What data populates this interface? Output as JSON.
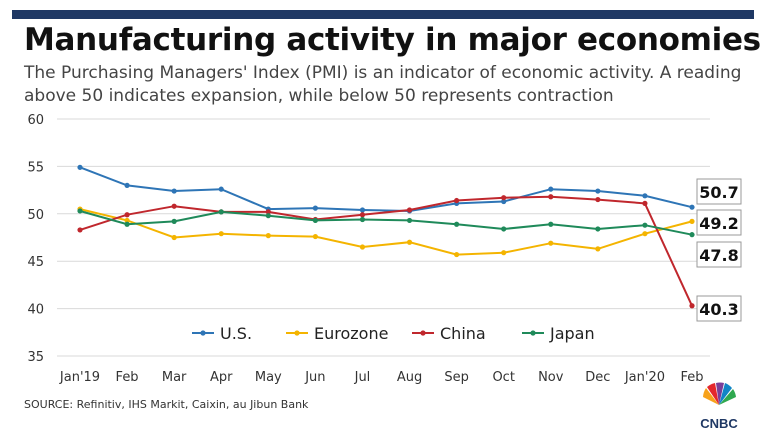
{
  "header": {
    "title": "Manufacturing activity in major economies",
    "subtitle": "The Purchasing Managers' Index (PMI) is an indicator of economic activity. A reading above 50 indicates expansion, while below 50 represents contraction"
  },
  "footer": {
    "source": "SOURCE: Refinitiv, IHS Markit, Caixin, au Jibun Bank",
    "logo_text": "CNBC"
  },
  "colors": {
    "bar": "#1f3864",
    "grid": "#d9d9d9"
  },
  "chart_data": {
    "type": "line",
    "categories": [
      "Jan'19",
      "Feb",
      "Mar",
      "Apr",
      "May",
      "Jun",
      "Jul",
      "Aug",
      "Sep",
      "Oct",
      "Nov",
      "Dec",
      "Jan'20",
      "Feb"
    ],
    "ylim": [
      35,
      60
    ],
    "yticks": [
      35,
      40,
      45,
      50,
      55,
      60
    ],
    "grid": true,
    "legend_position": "bottom-inside",
    "series": [
      {
        "name": "U.S.",
        "color": "#2e75b6",
        "values": [
          54.9,
          53.0,
          52.4,
          52.6,
          50.5,
          50.6,
          50.4,
          50.3,
          51.1,
          51.3,
          52.6,
          52.4,
          51.9,
          50.7
        ],
        "end_label": "50.7"
      },
      {
        "name": "Eurozone",
        "color": "#f4b400",
        "values": [
          50.5,
          49.3,
          47.5,
          47.9,
          47.7,
          47.6,
          46.5,
          47.0,
          45.7,
          45.9,
          46.9,
          46.3,
          47.9,
          49.2
        ],
        "end_label": "49.2"
      },
      {
        "name": "China",
        "color": "#c0272d",
        "values": [
          48.3,
          49.9,
          50.8,
          50.2,
          50.2,
          49.4,
          49.9,
          50.4,
          51.4,
          51.7,
          51.8,
          51.5,
          51.1,
          40.3
        ],
        "end_label": "40.3"
      },
      {
        "name": "Japan",
        "color": "#1f8a5a",
        "values": [
          50.3,
          48.9,
          49.2,
          50.2,
          49.8,
          49.3,
          49.4,
          49.3,
          48.9,
          48.4,
          48.9,
          48.4,
          48.8,
          47.8
        ],
        "end_label": "47.8"
      }
    ]
  }
}
